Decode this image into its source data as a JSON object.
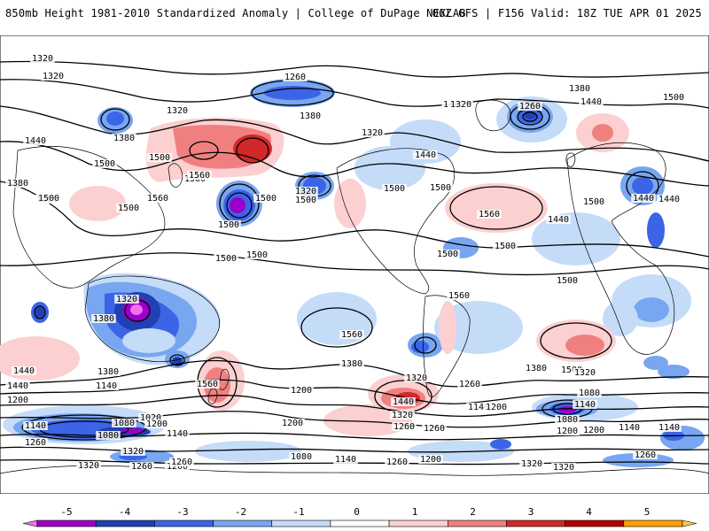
{
  "header": {
    "title": "850mb Height 1981-2010 Standardized Anomaly | College of DuPage NEXLAB",
    "run_info": "06Z GFS | F156 Valid: 18Z TUE APR 01 2025"
  },
  "colorbar": {
    "labels": [
      "-5",
      "-4",
      "-3",
      "-2",
      "-1",
      "0",
      "1",
      "2",
      "3",
      "4",
      "5"
    ],
    "colors": [
      "#f070f0",
      "#9a00c8",
      "#2040b4",
      "#3c64e6",
      "#78a6f0",
      "#c4dcf8",
      "#ffffff",
      "#fcd0d0",
      "#f08080",
      "#d02828",
      "#b40000",
      "#ffa000",
      "#ffc850"
    ]
  },
  "contour_labels": [
    "1320",
    "1320",
    "1260",
    "1380",
    "1260",
    "1440",
    "1320",
    "1380",
    "1380",
    "1320",
    "1440",
    "1320",
    "1500",
    "1440",
    "1380",
    "1320",
    "1440",
    "1560",
    "1500",
    "1560",
    "1500",
    "1500",
    "1500",
    "1440",
    "1500",
    "1500",
    "1440",
    "1500",
    "1560",
    "1500",
    "1500",
    "1500",
    "1440",
    "1500",
    "1500",
    "1500",
    "1500",
    "1500",
    "1560",
    "1500",
    "1560",
    "1320",
    "1380",
    "1560",
    "1440",
    "1380",
    "1440",
    "1380",
    "1320",
    "1200",
    "1260",
    "1200",
    "1140",
    "1560",
    "1500",
    "1440",
    "1380",
    "1320",
    "1140",
    "1080",
    "1020",
    "1080",
    "1140",
    "1200",
    "1080",
    "1140",
    "1260",
    "1200",
    "1320",
    "1260",
    "1320",
    "1260",
    "1200",
    "1140",
    "1080",
    "1140",
    "1200",
    "1260",
    "1320",
    "1140",
    "1200",
    "1320",
    "1260",
    "1200",
    "1080",
    "1140",
    "1260",
    "1200",
    "1320",
    "1260"
  ]
}
